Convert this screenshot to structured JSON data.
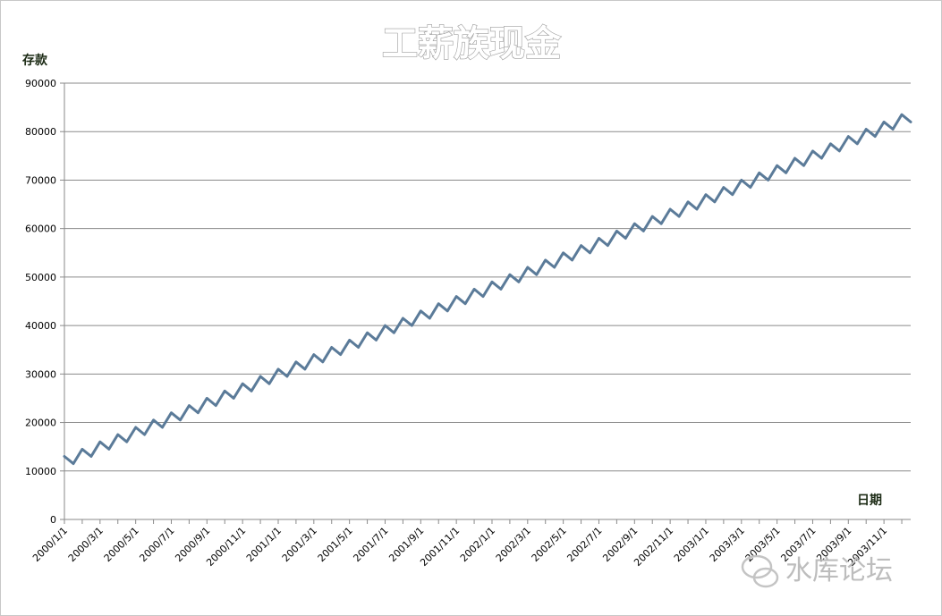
{
  "chart_data": {
    "type": "line",
    "title": "工薪族现金",
    "ylabel": "存款",
    "xlabel": "日期",
    "ylim": [
      0,
      90000
    ],
    "yticks": [
      0,
      10000,
      20000,
      30000,
      40000,
      50000,
      60000,
      70000,
      80000,
      90000
    ],
    "grid": true,
    "legend": "none",
    "line_color": "#5b7b99",
    "x_tick_labels": [
      "2000/1/1",
      "2000/3/1",
      "2000/5/1",
      "2000/7/1",
      "2000/9/1",
      "2000/11/1",
      "2001/1/1",
      "2001/3/1",
      "2001/5/1",
      "2001/7/1",
      "2001/9/1",
      "2001/11/1",
      "2002/1/1",
      "2002/3/1",
      "2002/5/1",
      "2002/7/1",
      "2002/9/1",
      "2002/11/1",
      "2003/1/1",
      "2003/3/1",
      "2003/5/1",
      "2003/7/1",
      "2003/9/1",
      "2003/11/1"
    ],
    "series": [
      {
        "x_start": "2000/1/1",
        "x_step": "half-month",
        "values": [
          13000,
          11500,
          14500,
          13000,
          16000,
          14500,
          17500,
          16000,
          19000,
          17500,
          20500,
          19000,
          22000,
          20500,
          23500,
          22000,
          25000,
          23500,
          26500,
          25000,
          28000,
          26500,
          29500,
          28000,
          31000,
          29500,
          32500,
          31000,
          34000,
          32500,
          35500,
          34000,
          37000,
          35500,
          38500,
          37000,
          40000,
          38500,
          41500,
          40000,
          43000,
          41500,
          44500,
          43000,
          46000,
          44500,
          47500,
          46000,
          49000,
          47500,
          50500,
          49000,
          52000,
          50500,
          53500,
          52000,
          55000,
          53500,
          56500,
          55000,
          58000,
          56500,
          59500,
          58000,
          61000,
          59500,
          62500,
          61000,
          64000,
          62500,
          65500,
          64000,
          67000,
          65500,
          68500,
          67000,
          70000,
          68500,
          71500,
          70000,
          73000,
          71500,
          74500,
          73000,
          76000,
          74500,
          77500,
          76000,
          79000,
          77500,
          80500,
          79000,
          82000,
          80500,
          83500,
          82000
        ]
      }
    ]
  },
  "watermark": {
    "text": "水库论坛",
    "icon": "chat-bubble-icon"
  }
}
